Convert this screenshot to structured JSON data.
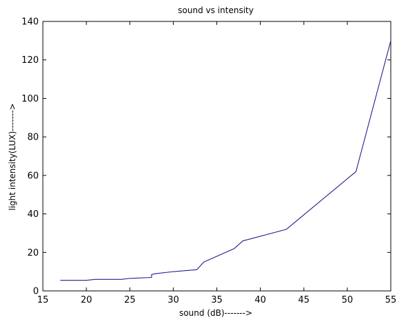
{
  "chart_data": {
    "type": "line",
    "title": "sound vs intensity",
    "xlabel": "sound (dB)------->",
    "ylabel": "light intensity(LUX)------->",
    "xlim": [
      15,
      55
    ],
    "ylim": [
      0,
      140
    ],
    "x_ticks": [
      "15",
      "20",
      "25",
      "30",
      "35",
      "40",
      "45",
      "50",
      "55"
    ],
    "y_ticks": [
      "0",
      "20",
      "40",
      "60",
      "80",
      "100",
      "120",
      "140"
    ],
    "grid": false,
    "line_color": "#1f1f8f",
    "series": [
      {
        "x": [
          17,
          20,
          21,
          24,
          25,
          27.5,
          27.5,
          28,
          30,
          32.7,
          33.5,
          37,
          38,
          43,
          51,
          55
        ],
        "y": [
          5.5,
          5.5,
          6,
          6,
          6.5,
          7,
          8.5,
          9,
          10,
          11,
          15,
          22,
          26,
          32,
          62,
          130
        ]
      }
    ]
  }
}
